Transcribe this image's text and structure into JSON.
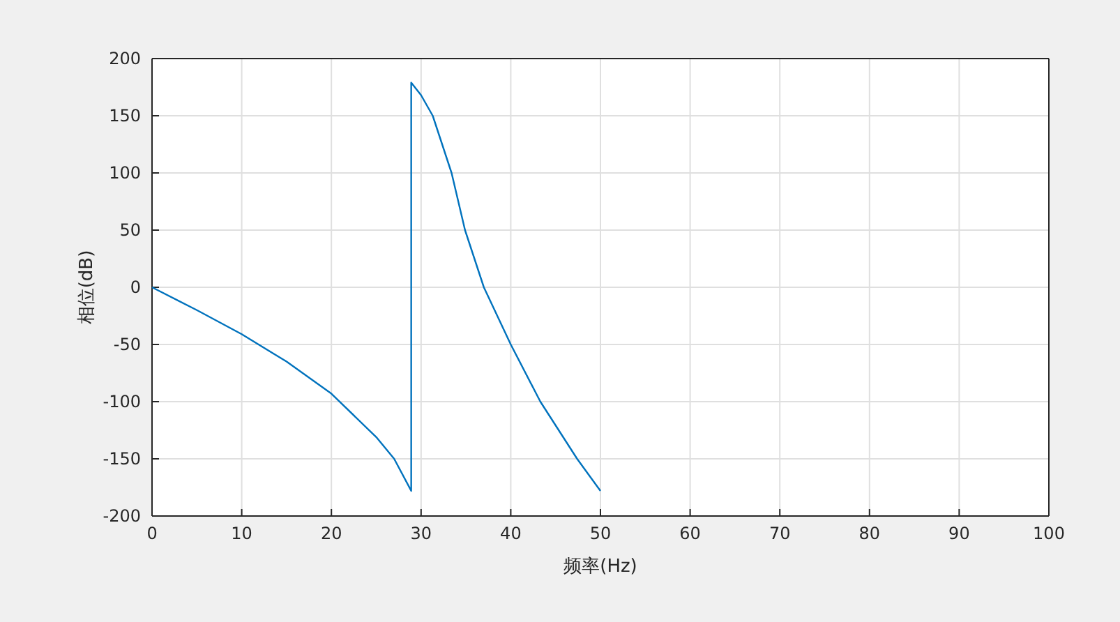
{
  "chart_data": {
    "type": "line",
    "xlabel": "频率(Hz)",
    "ylabel": "相位(dB)",
    "x": [
      0,
      5,
      10,
      15,
      20,
      25,
      27,
      28.9,
      28.9,
      30,
      31.3,
      33.4,
      34.9,
      37,
      40,
      43.3,
      47.4,
      50
    ],
    "series": [
      {
        "color": "#0072bd",
        "values": [
          0,
          -20,
          -41,
          -65,
          -93,
          -131,
          -150,
          -178,
          179,
          168,
          150,
          100,
          50,
          0,
          -50,
          -100,
          -150,
          -178
        ]
      }
    ],
    "xlim": [
      0,
      100
    ],
    "xticks": [
      0,
      10,
      20,
      30,
      40,
      50,
      60,
      70,
      80,
      90,
      100
    ],
    "ylim": [
      -200,
      200
    ],
    "yticks": [
      -200,
      -150,
      -100,
      -50,
      0,
      50,
      100,
      150,
      200
    ],
    "grid": true,
    "marker": "none",
    "line_style": "solid"
  }
}
